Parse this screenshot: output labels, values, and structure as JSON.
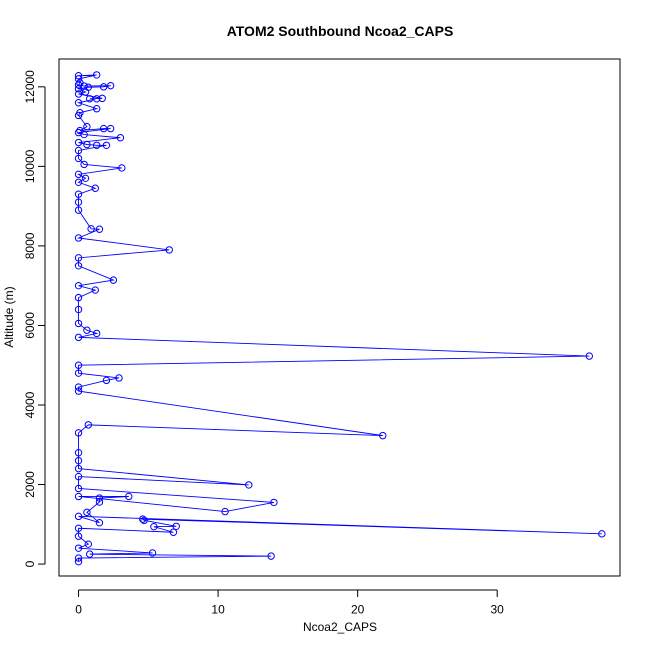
{
  "chart_data": {
    "type": "scatter",
    "title": "ATOM2 Southbound Ncoa2_CAPS",
    "xlabel": "Ncoa2_CAPS",
    "ylabel": "Altitude (m)",
    "xlim": [
      -1.4,
      38.8
    ],
    "ylim": [
      -300,
      12700
    ],
    "x_ticks": [
      0,
      10,
      20,
      30
    ],
    "x_tick_labels": [
      "0",
      "10",
      "20",
      "30"
    ],
    "y_ticks": [
      0,
      2000,
      4000,
      6000,
      8000,
      10000,
      12000
    ],
    "y_tick_labels": [
      "0",
      "2000",
      "4000",
      "6000",
      "8000",
      "10000",
      "12000"
    ],
    "grid": false,
    "legend": "none",
    "series": [
      {
        "color": "#0000ff",
        "style": "points-and-lines",
        "points": [
          [
            0.0,
            12280
          ],
          [
            1.3,
            12300
          ],
          [
            0.0,
            12200
          ],
          [
            0.1,
            12100
          ],
          [
            0.0,
            12050
          ],
          [
            0.4,
            12020
          ],
          [
            2.3,
            12030
          ],
          [
            1.8,
            12000
          ],
          [
            0.7,
            11990
          ],
          [
            0.0,
            11950
          ],
          [
            0.5,
            11870
          ],
          [
            0.0,
            11820
          ],
          [
            1.7,
            11710
          ],
          [
            0.8,
            11700
          ],
          [
            1.3,
            11700
          ],
          [
            0.0,
            11600
          ],
          [
            1.3,
            11450
          ],
          [
            0.1,
            11350
          ],
          [
            0.0,
            11280
          ],
          [
            0.6,
            11000
          ],
          [
            0.1,
            10900
          ],
          [
            1.8,
            10950
          ],
          [
            2.3,
            10950
          ],
          [
            0.0,
            10850
          ],
          [
            0.4,
            10800
          ],
          [
            3.0,
            10720
          ],
          [
            0.0,
            10600
          ],
          [
            0.6,
            10550
          ],
          [
            1.3,
            10530
          ],
          [
            2.0,
            10530
          ],
          [
            0.0,
            10400
          ],
          [
            0.0,
            10200
          ],
          [
            0.4,
            10050
          ],
          [
            3.1,
            9960
          ],
          [
            0.0,
            9800
          ],
          [
            0.5,
            9700
          ],
          [
            0.0,
            9600
          ],
          [
            1.2,
            9450
          ],
          [
            0.0,
            9300
          ],
          [
            0.0,
            9100
          ],
          [
            0.0,
            8900
          ],
          [
            0.9,
            8430
          ],
          [
            1.5,
            8420
          ],
          [
            0.0,
            8200
          ],
          [
            6.5,
            7900
          ],
          [
            0.0,
            7700
          ],
          [
            0.0,
            7500
          ],
          [
            2.5,
            7140
          ],
          [
            0.0,
            7000
          ],
          [
            1.2,
            6890
          ],
          [
            0.0,
            6700
          ],
          [
            0.0,
            6400
          ],
          [
            0.0,
            6050
          ],
          [
            0.6,
            5880
          ],
          [
            1.3,
            5800
          ],
          [
            0.0,
            5700
          ],
          [
            36.6,
            5230
          ],
          [
            0.0,
            5000
          ],
          [
            0.0,
            4800
          ],
          [
            2.9,
            4680
          ],
          [
            2.0,
            4620
          ],
          [
            0.0,
            4450
          ],
          [
            0.0,
            4350
          ],
          [
            21.8,
            3230
          ],
          [
            0.7,
            3500
          ],
          [
            0.0,
            3300
          ],
          [
            0.0,
            2800
          ],
          [
            0.0,
            2600
          ],
          [
            0.0,
            2400
          ],
          [
            12.2,
            1990
          ],
          [
            0.0,
            2200
          ],
          [
            0.0,
            1900
          ],
          [
            14.0,
            1550
          ],
          [
            10.5,
            1320
          ],
          [
            0.0,
            1700
          ],
          [
            3.6,
            1700
          ],
          [
            1.5,
            1660
          ],
          [
            1.5,
            1560
          ],
          [
            0.6,
            1300
          ],
          [
            1.5,
            1040
          ],
          [
            0.0,
            1200
          ],
          [
            37.5,
            760
          ],
          [
            4.6,
            1130
          ],
          [
            4.7,
            1100
          ],
          [
            7.0,
            950
          ],
          [
            5.4,
            940
          ],
          [
            6.8,
            800
          ],
          [
            0.0,
            900
          ],
          [
            0.0,
            700
          ],
          [
            0.7,
            500
          ],
          [
            0.0,
            400
          ],
          [
            5.3,
            280
          ],
          [
            0.8,
            250
          ],
          [
            13.8,
            200
          ],
          [
            0.0,
            150
          ],
          [
            0.0,
            60
          ]
        ]
      }
    ]
  }
}
